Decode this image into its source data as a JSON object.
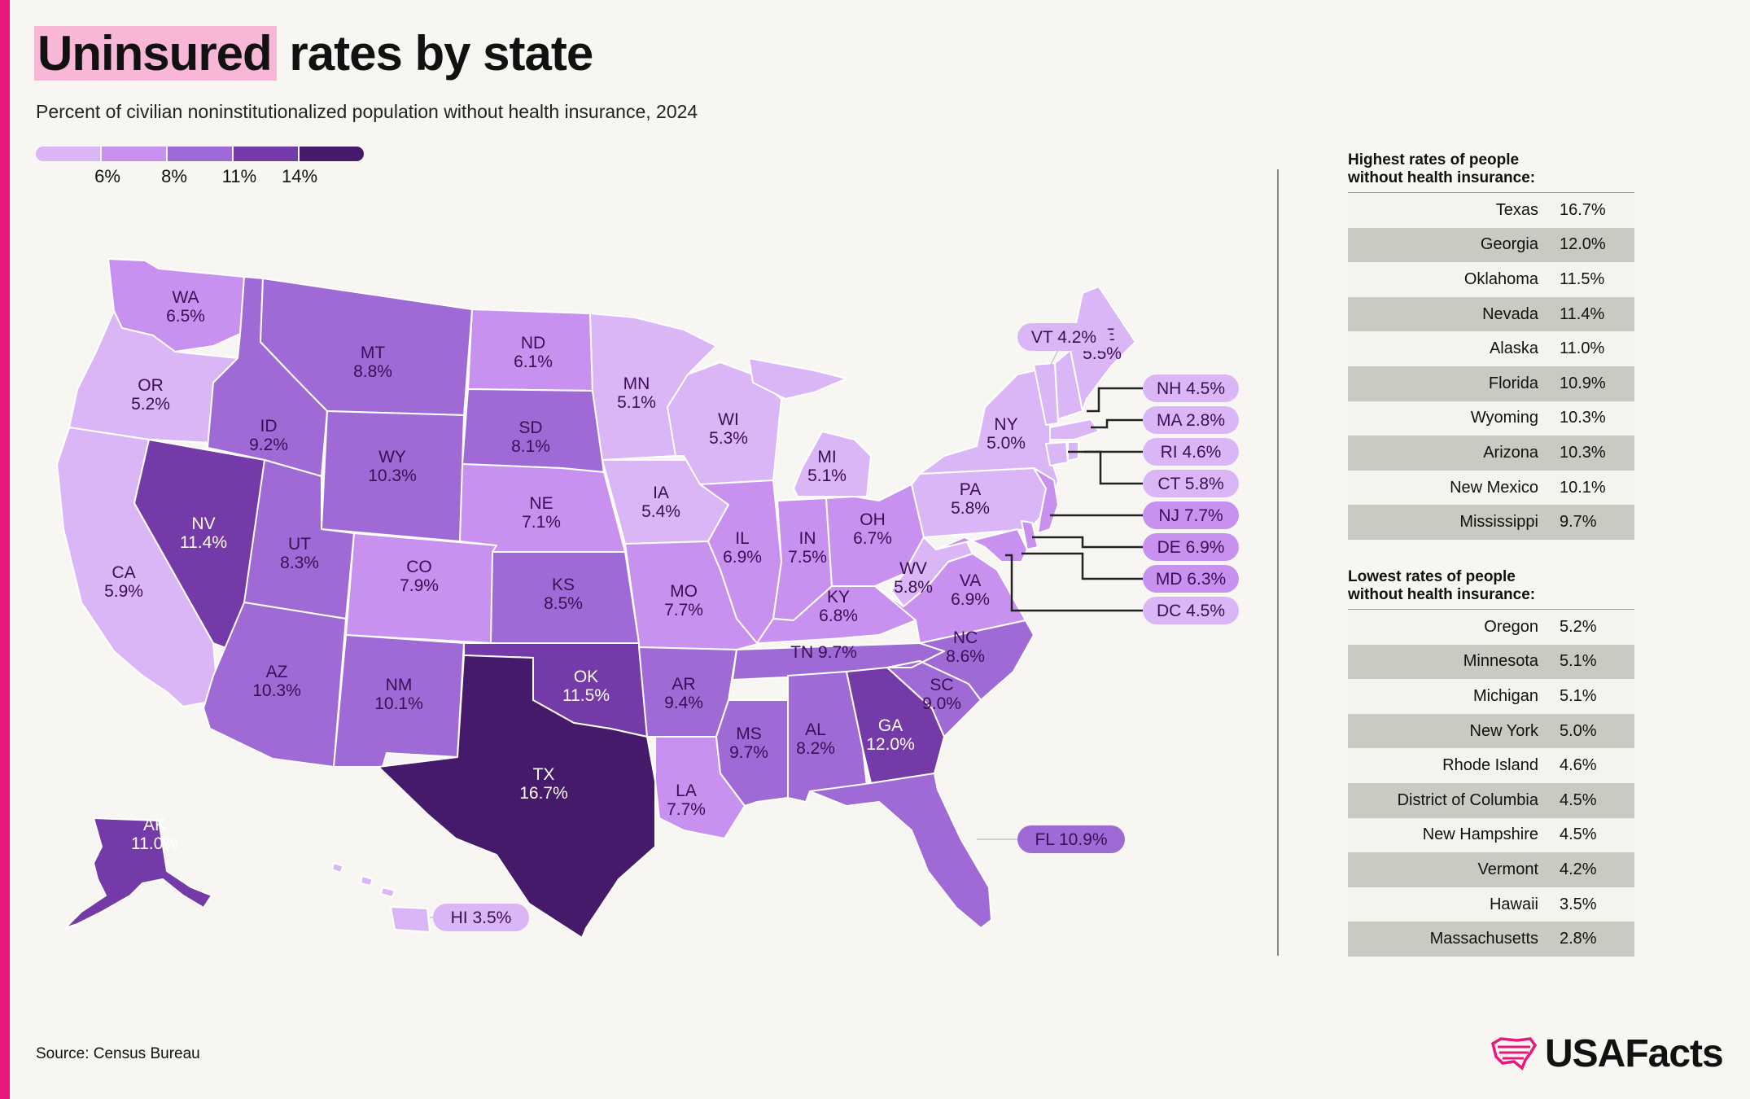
{
  "title_highlight": "Uninsured",
  "title_rest": " rates by state",
  "subtitle": "Percent of civilian noninstitutionalized population without health insurance, 2024",
  "legend": {
    "ticks": [
      "6%",
      "8%",
      "11%",
      "14%"
    ],
    "colors": [
      "#dbb6f7",
      "#c991ef",
      "#a06ad6",
      "#743aa8",
      "#461a6a"
    ]
  },
  "states": [
    {
      "abbr": "WA",
      "value": "6.5%"
    },
    {
      "abbr": "OR",
      "value": "5.2%"
    },
    {
      "abbr": "CA",
      "value": "5.9%"
    },
    {
      "abbr": "ID",
      "value": "9.2%"
    },
    {
      "abbr": "NV",
      "value": "11.4%"
    },
    {
      "abbr": "MT",
      "value": "8.8%"
    },
    {
      "abbr": "WY",
      "value": "10.3%"
    },
    {
      "abbr": "UT",
      "value": "8.3%"
    },
    {
      "abbr": "AZ",
      "value": "10.3%"
    },
    {
      "abbr": "CO",
      "value": "7.9%"
    },
    {
      "abbr": "NM",
      "value": "10.1%"
    },
    {
      "abbr": "ND",
      "value": "6.1%"
    },
    {
      "abbr": "SD",
      "value": "8.1%"
    },
    {
      "abbr": "NE",
      "value": "7.1%"
    },
    {
      "abbr": "KS",
      "value": "8.5%"
    },
    {
      "abbr": "OK",
      "value": "11.5%"
    },
    {
      "abbr": "TX",
      "value": "16.7%"
    },
    {
      "abbr": "MN",
      "value": "5.1%"
    },
    {
      "abbr": "IA",
      "value": "5.4%"
    },
    {
      "abbr": "MO",
      "value": "7.7%"
    },
    {
      "abbr": "AR",
      "value": "9.4%"
    },
    {
      "abbr": "LA",
      "value": "7.7%"
    },
    {
      "abbr": "WI",
      "value": "5.3%"
    },
    {
      "abbr": "IL",
      "value": "6.9%"
    },
    {
      "abbr": "MS",
      "value": "9.7%"
    },
    {
      "abbr": "MI",
      "value": "5.1%"
    },
    {
      "abbr": "IN",
      "value": "7.5%"
    },
    {
      "abbr": "KY",
      "value": "6.8%"
    },
    {
      "abbr": "TN",
      "value": "9.7%"
    },
    {
      "abbr": "AL",
      "value": "8.2%"
    },
    {
      "abbr": "OH",
      "value": "6.7%"
    },
    {
      "abbr": "GA",
      "value": "12.0%"
    },
    {
      "abbr": "FL",
      "value": "10.9%"
    },
    {
      "abbr": "SC",
      "value": "9.0%"
    },
    {
      "abbr": "NC",
      "value": "8.6%"
    },
    {
      "abbr": "VA",
      "value": "6.9%"
    },
    {
      "abbr": "WV",
      "value": "5.8%"
    },
    {
      "abbr": "PA",
      "value": "5.8%"
    },
    {
      "abbr": "NY",
      "value": "5.0%"
    },
    {
      "abbr": "ME",
      "value": "5.5%"
    },
    {
      "abbr": "AK",
      "value": "11.0%"
    },
    {
      "abbr": "HI",
      "value": "3.5%"
    },
    {
      "abbr": "VT",
      "value": "4.2%"
    },
    {
      "abbr": "NH",
      "value": "4.5%"
    },
    {
      "abbr": "MA",
      "value": "2.8%"
    },
    {
      "abbr": "RI",
      "value": "4.6%"
    },
    {
      "abbr": "CT",
      "value": "5.8%"
    },
    {
      "abbr": "NJ",
      "value": "7.7%"
    },
    {
      "abbr": "DE",
      "value": "6.9%"
    },
    {
      "abbr": "MD",
      "value": "6.3%"
    },
    {
      "abbr": "DC",
      "value": "4.5%"
    }
  ],
  "highest_table": {
    "title_line1": "Highest rates of people",
    "title_line2": "without health insurance:",
    "rows": [
      {
        "name": "Texas",
        "value": "16.7%"
      },
      {
        "name": "Georgia",
        "value": "12.0%"
      },
      {
        "name": "Oklahoma",
        "value": "11.5%"
      },
      {
        "name": "Nevada",
        "value": "11.4%"
      },
      {
        "name": "Alaska",
        "value": "11.0%"
      },
      {
        "name": "Florida",
        "value": "10.9%"
      },
      {
        "name": "Wyoming",
        "value": "10.3%"
      },
      {
        "name": "Arizona",
        "value": "10.3%"
      },
      {
        "name": "New Mexico",
        "value": "10.1%"
      },
      {
        "name": "Mississippi",
        "value": "9.7%"
      }
    ]
  },
  "lowest_table": {
    "title_line1": "Lowest rates of people",
    "title_line2": "without health insurance:",
    "rows": [
      {
        "name": "Oregon",
        "value": "5.2%"
      },
      {
        "name": "Minnesota",
        "value": "5.1%"
      },
      {
        "name": "Michigan",
        "value": "5.1%"
      },
      {
        "name": "New York",
        "value": "5.0%"
      },
      {
        "name": "Rhode Island",
        "value": "4.6%"
      },
      {
        "name": "District of Columbia",
        "value": "4.5%"
      },
      {
        "name": "New Hampshire",
        "value": "4.5%"
      },
      {
        "name": "Vermont",
        "value": "4.2%"
      },
      {
        "name": "Hawaii",
        "value": "3.5%"
      },
      {
        "name": "Massachusetts",
        "value": "2.8%"
      }
    ]
  },
  "source": "Source: Census Bureau",
  "logo_text": "USAFacts",
  "logo_color": "#e8197d"
}
